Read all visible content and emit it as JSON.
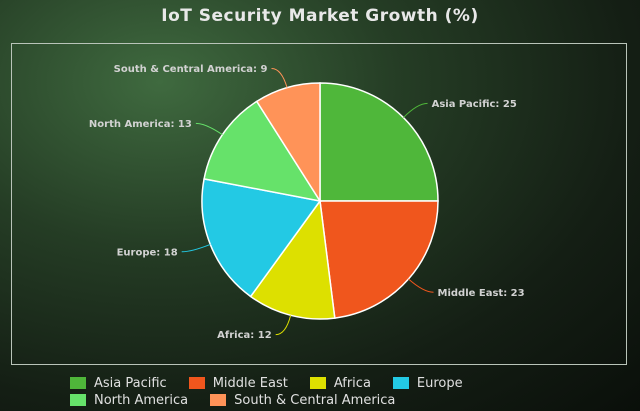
{
  "chart_data": {
    "type": "pie",
    "title": "IoT Security Market Growth (%)",
    "categories": [
      "Asia Pacific",
      "Middle East",
      "Africa",
      "Europe",
      "North America",
      "South & Central America"
    ],
    "values": [
      25,
      23,
      12,
      18,
      13,
      9
    ],
    "data_labels": [
      "Asia Pacific: 25",
      "Middle East: 23",
      "Africa: 12",
      "Europe: 18",
      "North America: 13",
      "South & Central America: 9"
    ],
    "colors": [
      "#4fb73a",
      "#f0561d",
      "#dde000",
      "#23c9e4",
      "#66e26a",
      "#ff9358"
    ],
    "legend": "bottom"
  }
}
